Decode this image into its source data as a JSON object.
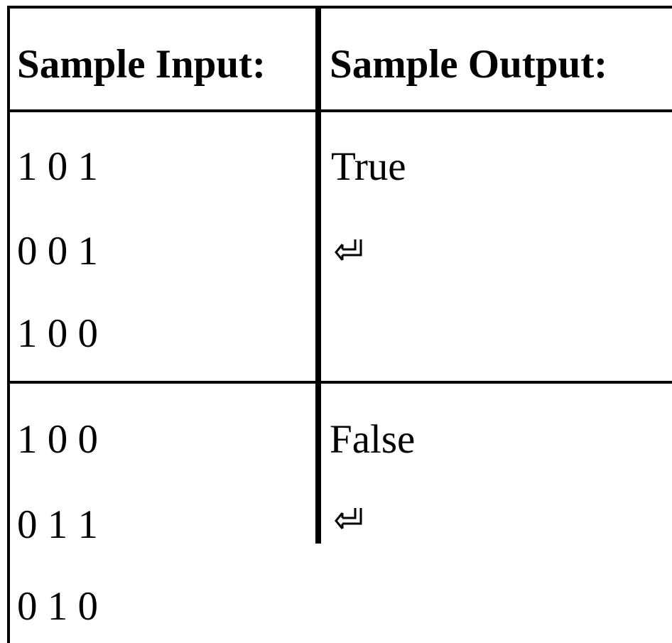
{
  "table": {
    "headers": {
      "input": "Sample Input:",
      "output": "Sample Output:"
    },
    "rows": [
      {
        "input_lines": [
          "1 0 1",
          "0 0 1",
          "1 0 0"
        ],
        "output": "True",
        "output_icon": "return-icon"
      },
      {
        "input_lines": [
          "1 0 0",
          "0 1 1",
          "0 1 0"
        ],
        "output": "False",
        "output_icon": "return-icon"
      }
    ]
  }
}
